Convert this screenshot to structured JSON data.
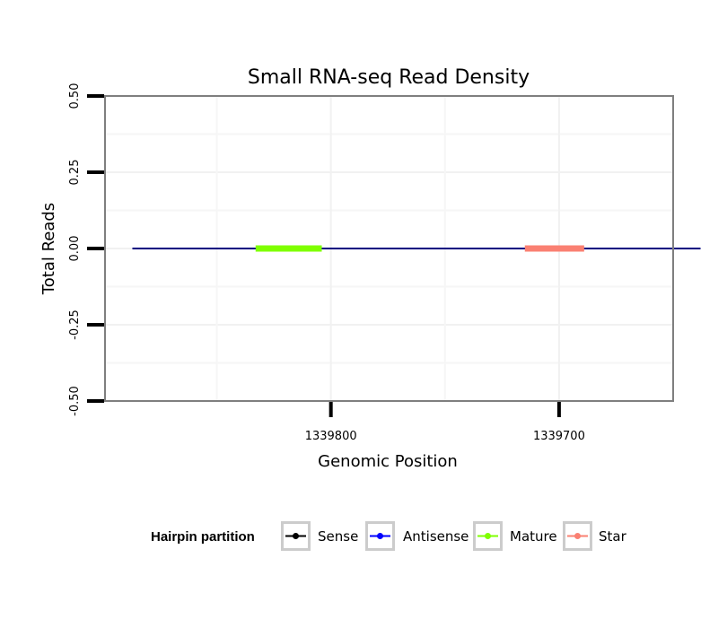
{
  "chart_data": {
    "type": "line",
    "title": "Small RNA-seq Read Density",
    "xlabel": "Genomic Position",
    "ylabel": "Total Reads",
    "x_reversed": true,
    "xlim": [
      1339899,
      1339650
    ],
    "ylim": [
      -0.5,
      0.5
    ],
    "x_ticks": [
      {
        "value": 1339800,
        "label": "1339800"
      },
      {
        "value": 1339700,
        "label": "1339700"
      }
    ],
    "y_ticks": [
      {
        "value": -0.5,
        "label": "-0.50"
      },
      {
        "value": -0.25,
        "label": "-0.25"
      },
      {
        "value": 0,
        "label": "0.00"
      },
      {
        "value": 0.25,
        "label": "0.25"
      },
      {
        "value": 0.5,
        "label": "0.50"
      }
    ],
    "series": [
      {
        "name": "Sense",
        "color": "#000000",
        "x_start": 1339887,
        "x_end": 1339638,
        "y": 0
      },
      {
        "name": "Antisense",
        "color": "#0000ff",
        "x_start": 1339887,
        "x_end": 1339638,
        "y": 0
      },
      {
        "name": "Mature",
        "color": "#7fff00",
        "x_start": 1339833,
        "x_end": 1339804,
        "y": 0
      },
      {
        "name": "Star",
        "color": "#fa8072",
        "x_start": 1339715,
        "x_end": 1339689,
        "y": 0
      }
    ],
    "legend": {
      "title": "Hairpin partition",
      "position": "bottom",
      "entries": [
        {
          "label": "Sense",
          "color": "#000000"
        },
        {
          "label": "Antisense",
          "color": "#0000ff"
        },
        {
          "label": "Mature",
          "color": "#7fff00"
        },
        {
          "label": "Star",
          "color": "#fa8072"
        }
      ]
    },
    "grid": true
  }
}
